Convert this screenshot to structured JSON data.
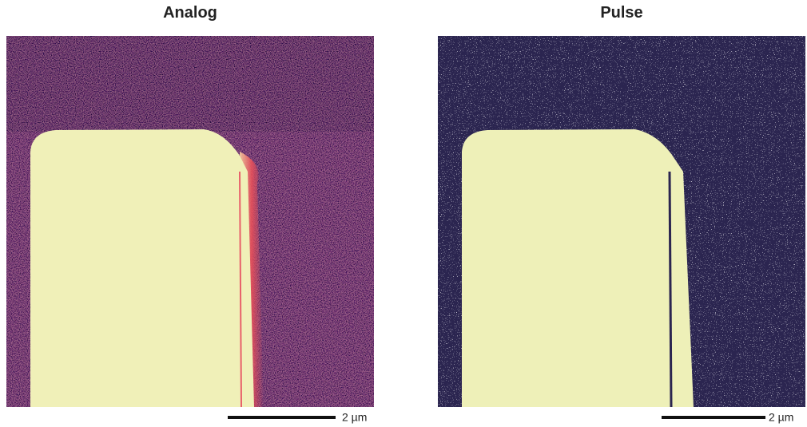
{
  "panels": [
    {
      "title": "Analog",
      "scale_bar": "2 µm"
    },
    {
      "title": "Pulse",
      "scale_bar": "2 µm"
    }
  ]
}
